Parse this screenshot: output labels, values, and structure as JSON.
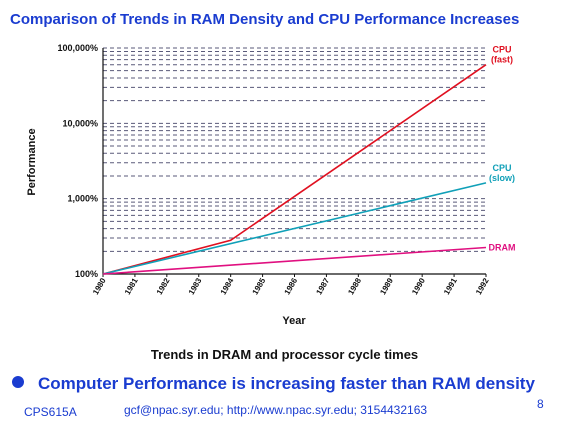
{
  "slide": {
    "title": "Comparison of Trends in RAM Density and CPU Performance Increases",
    "caption": "Trends in DRAM and processor cycle times",
    "bullet": "Computer Performance is increasing faster than RAM density",
    "course": "CPS615A",
    "contact": "gcf@npac.syr.edu; http://www.npac.syr.edu; 3154432163",
    "page_number": "8"
  },
  "chart_data": {
    "type": "line",
    "title": "",
    "xlabel": "Year",
    "ylabel": "Performance",
    "yscale": "log",
    "ylim": [
      100,
      100000
    ],
    "xlim": [
      1980,
      1992
    ],
    "x_ticks": [
      "1980",
      "1981",
      "1982",
      "1983",
      "1984",
      "1985",
      "1986",
      "1987",
      "1988",
      "1989",
      "1990",
      "1991",
      "1992"
    ],
    "y_ticks": [
      "100%",
      "1,000%",
      "10,000%",
      "100,000%"
    ],
    "grid": "dashed horizontal lines at log minor ticks",
    "series": [
      {
        "name": "CPU (fast)",
        "label_lines": [
          "CPU",
          "(fast)"
        ],
        "color": "#e01020",
        "x": [
          1980,
          1984,
          1992
        ],
        "y": [
          100,
          280,
          60000
        ]
      },
      {
        "name": "CPU (slow)",
        "label_lines": [
          "CPU",
          "(slow)"
        ],
        "color": "#10a0b8",
        "x": [
          1980,
          1992
        ],
        "y": [
          100,
          1620
        ]
      },
      {
        "name": "DRAM",
        "label_lines": [
          "DRAM"
        ],
        "color": "#e01080",
        "x": [
          1980,
          1992
        ],
        "y": [
          100,
          225
        ]
      }
    ]
  }
}
